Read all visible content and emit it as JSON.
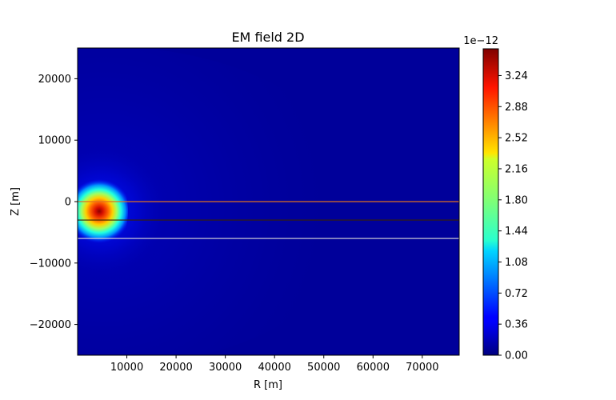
{
  "chart_data": {
    "type": "heatmap",
    "title": "EM field 2D",
    "xlabel": "R [m]",
    "ylabel": "Z [m]",
    "xlim": [
      0,
      77500
    ],
    "ylim": [
      -25000,
      25000
    ],
    "x_ticks": [
      10000,
      20000,
      30000,
      40000,
      50000,
      60000,
      70000
    ],
    "x_tick_labels": [
      "10000",
      "20000",
      "30000",
      "40000",
      "50000",
      "60000",
      "70000"
    ],
    "y_ticks": [
      20000,
      10000,
      0,
      -10000,
      -20000
    ],
    "y_tick_labels": [
      "20000",
      "10000",
      "0",
      "−10000",
      "−20000"
    ],
    "colormap": "jet",
    "colorbar": {
      "min": 0,
      "max": 3.55e-12,
      "scale_label": "1e−12",
      "ticks": [
        0,
        0.36,
        0.72,
        1.08,
        1.44,
        1.8,
        2.16,
        2.52,
        2.88,
        3.24
      ],
      "tick_labels": [
        "0.00",
        "0.36",
        "0.72",
        "1.08",
        "1.44",
        "1.80",
        "2.16",
        "2.52",
        "2.88",
        "3.24"
      ]
    },
    "source": {
      "r": 4500,
      "z": -1800,
      "peak": 3.55e-12
    },
    "horizontal_lines": [
      {
        "z": 0,
        "color": "#e07020"
      },
      {
        "z": -3000,
        "color": "#3a2200"
      },
      {
        "z": -6000,
        "color": "#dcdcdc"
      }
    ],
    "grid": false
  }
}
